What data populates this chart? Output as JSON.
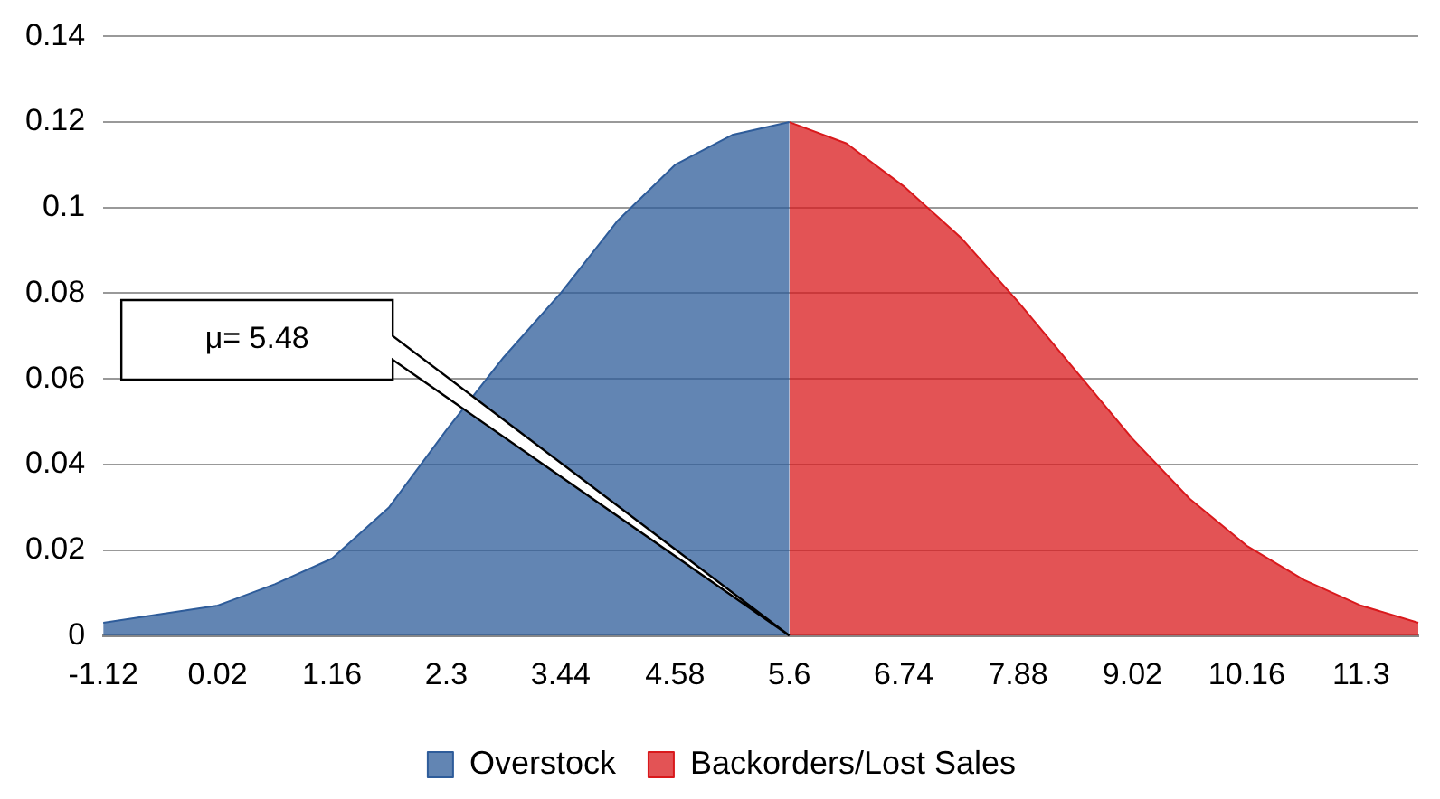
{
  "chart_data": {
    "type": "area",
    "categories": [
      "-1.12",
      null,
      "0.02",
      null,
      "1.16",
      null,
      "2.3",
      null,
      "3.44",
      null,
      "4.58",
      null,
      "5.6",
      null,
      "6.74",
      null,
      "7.88",
      null,
      "9.02",
      null,
      "10.16",
      null,
      "11.3",
      null
    ],
    "series": [
      {
        "name": "Overstock",
        "color": "#2e5c9a",
        "values": [
          0.003,
          0.005,
          0.007,
          0.012,
          0.018,
          0.03,
          0.048,
          0.065,
          0.08,
          0.097,
          0.11,
          0.117,
          0.12,
          null,
          null,
          null,
          null,
          null,
          null,
          null,
          null,
          null,
          null,
          null
        ]
      },
      {
        "name": "Backorders/Lost Sales",
        "color": "#d9191c",
        "values": [
          null,
          null,
          null,
          null,
          null,
          null,
          null,
          null,
          null,
          null,
          null,
          null,
          0.12,
          0.115,
          0.105,
          0.093,
          0.078,
          0.062,
          0.046,
          0.032,
          0.021,
          0.013,
          0.007,
          0.003
        ]
      }
    ],
    "ylim": [
      0,
      0.14
    ],
    "yticks": [
      0,
      0.02,
      0.04,
      0.06,
      0.08,
      0.1,
      0.12,
      0.14
    ],
    "grid": "y",
    "legend": "bottom",
    "marker": "none",
    "annotations": [
      "μ= 5.48"
    ]
  }
}
